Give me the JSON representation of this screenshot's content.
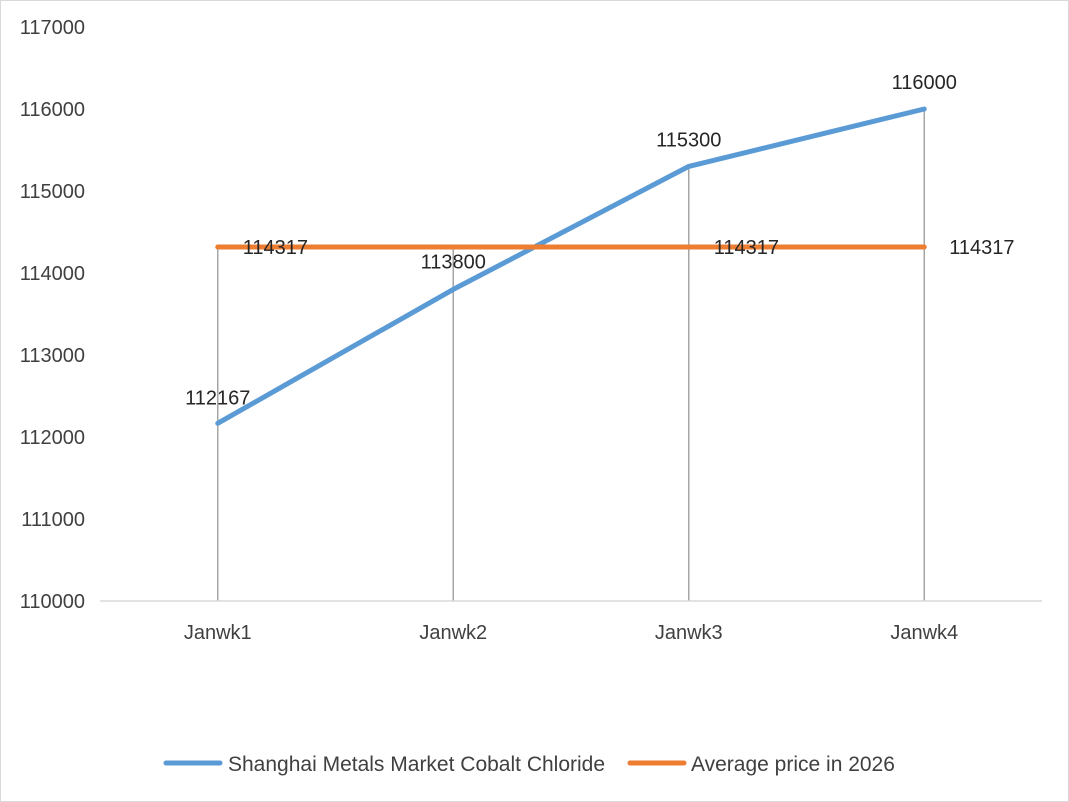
{
  "chart_data": {
    "type": "line",
    "categories": [
      "Janwk1",
      "Janwk2",
      "Janwk3",
      "Janwk4"
    ],
    "series": [
      {
        "name": "Shanghai Metals Market Cobalt Chloride",
        "values": [
          112167,
          113800,
          115300,
          116000
        ],
        "color": "#5B9BD5",
        "data_labels": [
          "112167",
          "113800",
          "115300",
          "116000"
        ]
      },
      {
        "name": "Average price in 2026",
        "values": [
          114317,
          114317,
          114317,
          114317
        ],
        "color": "#ED7D31",
        "data_labels": [
          "114317",
          "",
          "114317",
          "114317"
        ]
      }
    ],
    "ylim": [
      110000,
      117000
    ],
    "yticks": [
      "110000",
      "111000",
      "112000",
      "113000",
      "114000",
      "115000",
      "116000",
      "117000"
    ],
    "drop_lines": true,
    "grid": false,
    "legend_position": "bottom",
    "title": "",
    "xlabel": "",
    "ylabel": ""
  }
}
